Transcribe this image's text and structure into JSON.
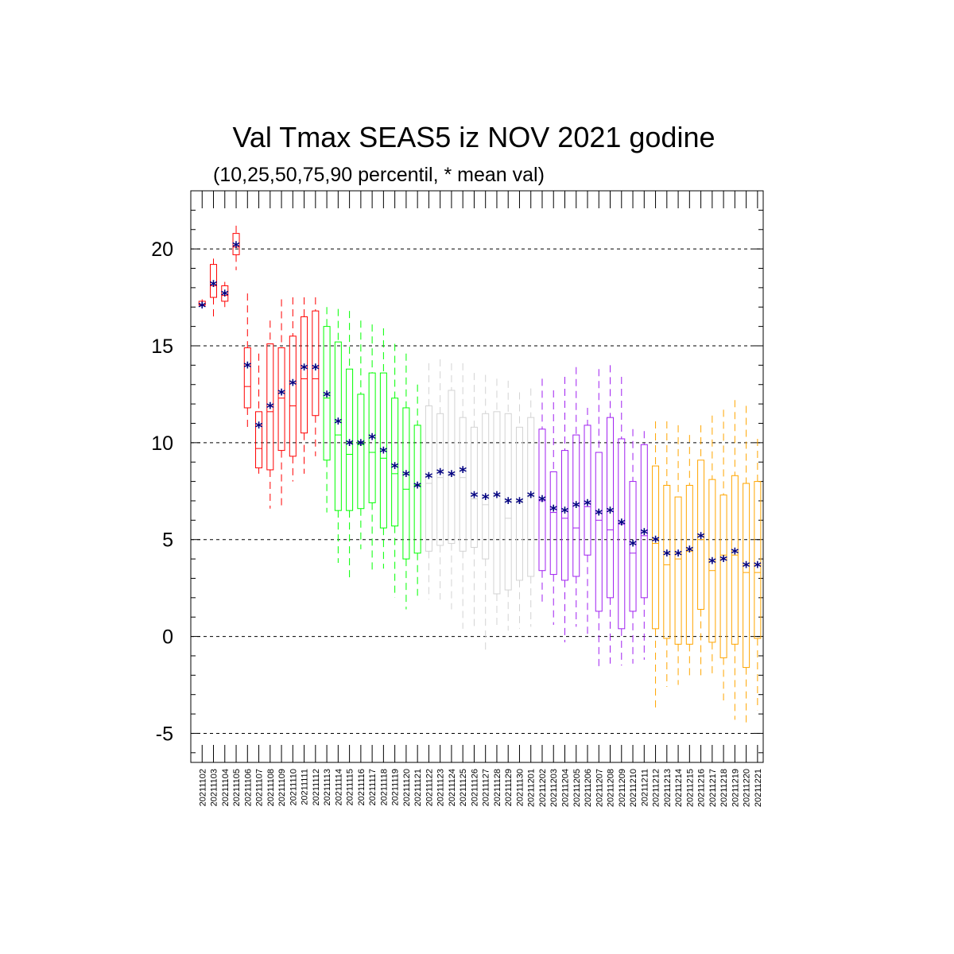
{
  "chart_data": {
    "type": "boxplot",
    "title": "Val Tmax SEAS5 iz NOV 2021 godine",
    "subtitle": "(10,25,50,75,90 percentil, * mean val)",
    "ylim": [
      -6.5,
      23.0
    ],
    "yticks": [
      -5,
      0,
      5,
      10,
      15,
      20
    ],
    "ytick_labels": [
      "-5",
      "0",
      "5",
      "10",
      "15",
      "20"
    ],
    "grid_lines_at": [
      -5,
      0,
      5,
      10,
      15,
      20
    ],
    "mean_color": "#000080",
    "categories": [
      "20211102",
      "20211103",
      "20211104",
      "20211105",
      "20211106",
      "20211107",
      "20211108",
      "20211109",
      "20211110",
      "20211111",
      "20211112",
      "20211113",
      "20211114",
      "20211115",
      "20211116",
      "20211117",
      "20211118",
      "20211119",
      "20211120",
      "20211121",
      "20211122",
      "20211123",
      "20211124",
      "20211125",
      "20211126",
      "20211127",
      "20211128",
      "20211129",
      "20211130",
      "20211201",
      "20211202",
      "20211203",
      "20211204",
      "20211205",
      "20211206",
      "20211207",
      "20211208",
      "20211209",
      "20211210",
      "20211211",
      "20211212",
      "20211213",
      "20211214",
      "20211215",
      "20211216",
      "20211217",
      "20211218",
      "20211219",
      "20211220",
      "20211221"
    ],
    "groups": [
      {
        "color": "#ff0000",
        "count": 11
      },
      {
        "color": "#00ff00",
        "count": 9
      },
      {
        "color": "#d3d3d3",
        "count": 10
      },
      {
        "color": "#a020f0",
        "count": 10
      },
      {
        "color": "#ffa500",
        "count": 10
      }
    ],
    "p10": [
      17.0,
      16.4,
      17.0,
      18.9,
      10.8,
      8.4,
      6.6,
      6.7,
      8.0,
      8.4,
      9.3,
      6.4,
      3.8,
      2.9,
      4.5,
      3.3,
      3.5,
      2.0,
      1.4,
      2.1,
      1.9,
      1.9,
      1.4,
      0.4,
      0.5,
      -0.9,
      0.5,
      0.3,
      0.4,
      0.5,
      1.7,
      0.6,
      -0.3,
      0.5,
      0.0,
      -1.6,
      -1.4,
      -1.5,
      -1.4,
      -1.2,
      -3.7,
      -2.6,
      -2.5,
      -2.0,
      -2.0,
      -2.0,
      -3.3,
      -4.3,
      -4.5,
      -3.8
    ],
    "p25": [
      17.1,
      17.5,
      17.3,
      19.7,
      11.8,
      8.7,
      8.6,
      9.6,
      9.3,
      10.5,
      11.4,
      9.1,
      6.5,
      6.5,
      6.6,
      6.9,
      5.6,
      5.7,
      4.0,
      4.3,
      4.4,
      4.7,
      4.8,
      4.4,
      4.6,
      4.0,
      2.2,
      2.4,
      2.9,
      3.1,
      3.4,
      3.2,
      2.9,
      3.1,
      4.2,
      1.3,
      2.0,
      0.4,
      1.3,
      2.0,
      0.4,
      -0.1,
      -0.4,
      -0.4,
      1.4,
      -0.3,
      -1.1,
      -0.4,
      -1.6,
      -0.1
    ],
    "p50": [
      17.1,
      18.1,
      17.6,
      20.1,
      12.9,
      9.7,
      11.6,
      12.3,
      11.9,
      13.3,
      13.3,
      12.3,
      10.4,
      9.4,
      9.9,
      9.5,
      9.2,
      8.4,
      7.6,
      7.8,
      7.9,
      8.2,
      8.3,
      8.2,
      7.1,
      6.8,
      7.3,
      6.1,
      6.9,
      7.2,
      7.0,
      6.4,
      6.1,
      5.6,
      6.7,
      6.0,
      5.5,
      5.8,
      4.3,
      5.2,
      4.8,
      3.7,
      4.0,
      4.4,
      5.0,
      3.4,
      4.2,
      4.2,
      3.3,
      3.3
    ],
    "p75": [
      17.3,
      19.2,
      18.1,
      20.8,
      14.9,
      11.6,
      15.1,
      14.9,
      15.5,
      16.5,
      16.8,
      16.0,
      15.2,
      13.8,
      12.5,
      13.6,
      13.6,
      12.3,
      11.8,
      10.9,
      11.9,
      11.5,
      12.7,
      11.3,
      10.8,
      11.5,
      11.6,
      11.5,
      10.8,
      11.3,
      10.7,
      8.5,
      9.6,
      10.4,
      10.9,
      9.5,
      11.3,
      10.2,
      8.0,
      9.9,
      8.8,
      7.8,
      7.2,
      7.8,
      9.1,
      8.1,
      7.3,
      8.3,
      7.9,
      8.0
    ],
    "p90": [
      17.4,
      19.5,
      18.3,
      21.2,
      17.7,
      14.6,
      16.3,
      17.4,
      17.5,
      17.5,
      17.5,
      17.0,
      16.9,
      16.8,
      16.3,
      16.1,
      15.9,
      15.1,
      14.6,
      13.0,
      14.1,
      14.3,
      14.1,
      14.1,
      13.6,
      13.5,
      13.3,
      13.2,
      12.6,
      12.8,
      13.3,
      12.7,
      13.4,
      13.9,
      11.8,
      13.8,
      14.0,
      13.4,
      10.7,
      10.6,
      11.1,
      11.1,
      10.9,
      10.4,
      10.9,
      11.4,
      11.7,
      12.2,
      11.9,
      10.2
    ],
    "mean": [
      17.1,
      18.2,
      17.7,
      20.2,
      14.0,
      10.9,
      11.9,
      12.6,
      13.1,
      13.9,
      13.9,
      12.5,
      11.1,
      10.0,
      10.0,
      10.3,
      9.6,
      8.8,
      8.4,
      7.8,
      8.3,
      8.5,
      8.4,
      8.6,
      7.3,
      7.2,
      7.3,
      7.0,
      7.0,
      7.3,
      7.1,
      6.6,
      6.5,
      6.8,
      6.9,
      6.4,
      6.5,
      5.9,
      4.8,
      5.4,
      5.0,
      4.3,
      4.3,
      4.5,
      5.2,
      3.9,
      4.0,
      4.4,
      3.7,
      3.7
    ]
  }
}
